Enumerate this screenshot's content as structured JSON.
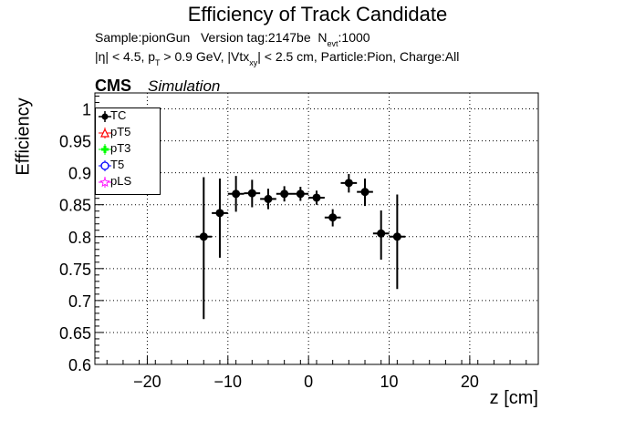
{
  "chart_data": {
    "type": "scatter",
    "title": "Efficiency of Track Candidate",
    "info_line1": {
      "sample": "Sample:pionGun",
      "version": "Version tag:2147be",
      "nevt_label_main": "N",
      "nevt_label_sub": "evt",
      "nevt_value": ":1000"
    },
    "info_line2": {
      "eta": "|η| < 4.5, p",
      "pt_sub": "T",
      "pt_rest": " > 0.9 GeV, |Vtx",
      "vtx_sub": "xy",
      "vtx_rest": "| < 2.5 cm, Particle:Pion, Charge:All"
    },
    "cms_label": "CMS",
    "simulation_label": "Simulation",
    "xlabel": "z [cm]",
    "ylabel": "Efficiency",
    "xlim": [
      -26.5,
      28.5
    ],
    "ylim": [
      0.6,
      1.025
    ],
    "x_ticks": [
      -20,
      -10,
      0,
      10,
      20
    ],
    "x_tick_labels": [
      "−20",
      "−10",
      "0",
      "10",
      "20"
    ],
    "y_ticks": [
      0.6,
      0.65,
      0.7,
      0.75,
      0.8,
      0.85,
      0.9,
      0.95,
      1.0
    ],
    "y_tick_labels": [
      "0.6",
      "0.65",
      "0.7",
      "0.75",
      "0.8",
      "0.85",
      "0.9",
      "0.95",
      "1"
    ],
    "grid": true,
    "legend_position": "top-left",
    "legend": [
      {
        "name": "TC",
        "color": "#000000",
        "marker": "filled-circle"
      },
      {
        "name": "pT5",
        "color": "#ff0000",
        "marker": "open-triangle"
      },
      {
        "name": "pT3",
        "color": "#00ff00",
        "marker": "filled-cross"
      },
      {
        "name": "T5",
        "color": "#0000ff",
        "marker": "open-circle"
      },
      {
        "name": "pLS",
        "color": "#ff00ff",
        "marker": "star"
      }
    ],
    "series": [
      {
        "name": "TC",
        "color": "#000000",
        "x_err": 1,
        "points": [
          {
            "x": -13,
            "y": 0.8,
            "lo": 0.671,
            "hi": 0.893
          },
          {
            "x": -11,
            "y": 0.837,
            "lo": 0.767,
            "hi": 0.891
          },
          {
            "x": -9,
            "y": 0.867,
            "lo": 0.839,
            "hi": 0.895
          },
          {
            "x": -7,
            "y": 0.868,
            "lo": 0.846,
            "hi": 0.889
          },
          {
            "x": -5,
            "y": 0.859,
            "lo": 0.843,
            "hi": 0.875
          },
          {
            "x": -3,
            "y": 0.867,
            "lo": 0.855,
            "hi": 0.879
          },
          {
            "x": -1,
            "y": 0.867,
            "lo": 0.856,
            "hi": 0.878
          },
          {
            "x": 1,
            "y": 0.861,
            "lo": 0.85,
            "hi": 0.872
          },
          {
            "x": 3,
            "y": 0.83,
            "lo": 0.816,
            "hi": 0.843
          },
          {
            "x": 5,
            "y": 0.884,
            "lo": 0.869,
            "hi": 0.898
          },
          {
            "x": 7,
            "y": 0.87,
            "lo": 0.848,
            "hi": 0.891
          },
          {
            "x": 9,
            "y": 0.805,
            "lo": 0.764,
            "hi": 0.841
          },
          {
            "x": 11,
            "y": 0.8,
            "lo": 0.718,
            "hi": 0.866
          }
        ]
      }
    ]
  }
}
